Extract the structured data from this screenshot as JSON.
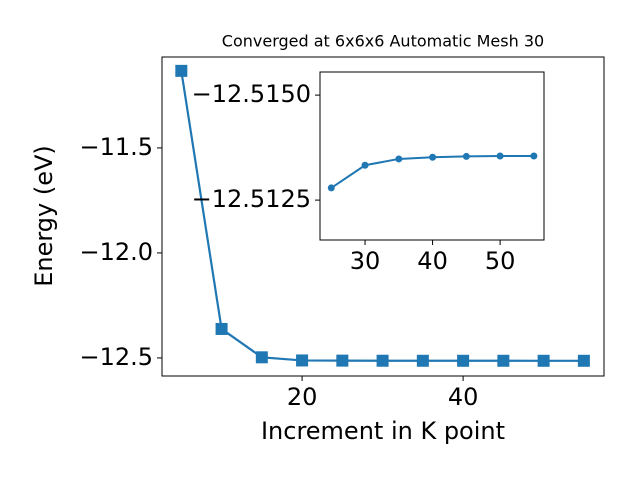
{
  "chart_data": [
    {
      "type": "line",
      "title": "Converged at 6x6x6 Automatic Mesh 30",
      "x_label": "Increment in K point",
      "y_label": "Energy (eV)",
      "x": [
        5,
        10,
        15,
        20,
        25,
        30,
        35,
        40,
        45,
        50,
        55
      ],
      "series": [
        {
          "color": "#1f77b4",
          "marker": "square",
          "values": [
            -11.133,
            -12.362,
            -12.497,
            -12.512,
            -12.5128,
            -12.5133,
            -12.5135,
            -12.5135,
            -12.5135,
            -12.5136,
            -12.5136
          ]
        }
      ],
      "xlim": [
        2.6,
        57.5
      ],
      "ylim": [
        -12.586,
        -11.067
      ],
      "xticks": [
        20,
        40
      ],
      "yticks": [
        {
          "value": -12.5,
          "label": "−12.5"
        },
        {
          "value": -12.0,
          "label": "−12.0"
        },
        {
          "value": -11.5,
          "label": "−11.5"
        }
      ]
    },
    {
      "type": "line",
      "x": [
        25,
        30,
        35,
        40,
        45,
        50,
        55
      ],
      "series": [
        {
          "color": "#1f77b4",
          "marker": "circle",
          "values": [
            -12.51279,
            -12.51333,
            -12.51348,
            -12.51352,
            -12.51354,
            -12.51355,
            -12.51355
          ]
        }
      ],
      "xlim": [
        23.33,
        56.5
      ],
      "ylim": [
        -12.51155,
        -12.51555
      ],
      "xticks": [
        30,
        40,
        50
      ],
      "yticks": [
        {
          "value": -12.515,
          "label": "−12.5150"
        },
        {
          "value": -12.5125,
          "label": "−12.5125"
        }
      ]
    }
  ]
}
